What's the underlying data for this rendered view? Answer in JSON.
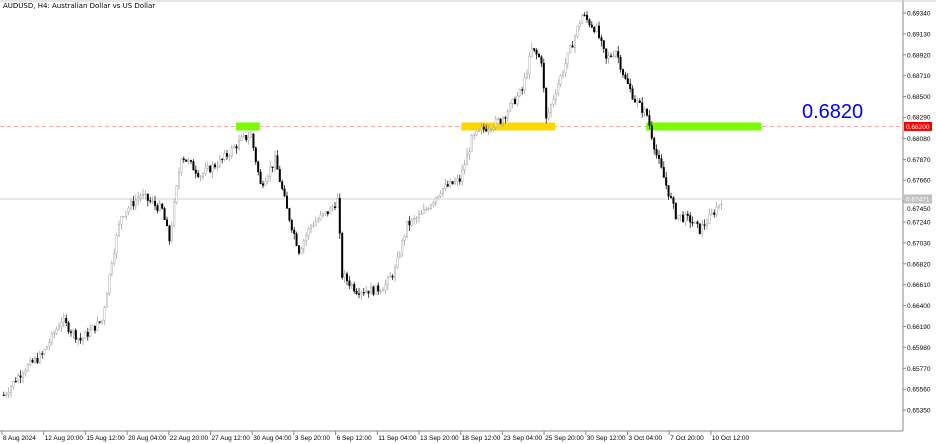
{
  "header": {
    "title": "AUDUSD, H4:  Australian Dollar vs US Dollar"
  },
  "annotation": {
    "level_text": "0.6820",
    "color": "#0000ff"
  },
  "chart_data": {
    "type": "candlestick",
    "symbol": "AUDUSD",
    "timeframe": "H4",
    "ylim": [
      0.6525,
      0.6945
    ],
    "y_ticks": [
      "0.69340",
      "0.69130",
      "0.68920",
      "0.68710",
      "0.68500",
      "0.68290",
      "0.68080",
      "0.67870",
      "0.67660",
      "0.67450",
      "0.67240",
      "0.67030",
      "0.66820",
      "0.66610",
      "0.66400",
      "0.66190",
      "0.65980",
      "0.65770",
      "0.65560",
      "0.65350"
    ],
    "x_ticks": [
      "8 Aug 2024",
      "12 Aug 20:00",
      "15 Aug 12:00",
      "20 Aug 04:00",
      "22 Aug 20:00",
      "27 Aug 12:00",
      "30 Aug 04:00",
      "3 Sep 20:00",
      "6 Sep 12:00",
      "11 Sep 04:00",
      "13 Sep 20:00",
      "18 Sep 12:00",
      "23 Sep 04:00",
      "25 Sep 20:00",
      "30 Sep 12:00",
      "3 Oct 04:00",
      "7 Oct 20:00",
      "10 Oct 12:00"
    ],
    "horizontal_line": {
      "price": 0.682,
      "label": "0.68200",
      "color": "#ff0000"
    },
    "current_price": {
      "price": 0.67471,
      "label": "0.67471",
      "color": "#c0c0c0"
    },
    "zones": [
      {
        "bars": [
          97,
          107
        ],
        "price": [
          0.6816,
          0.6824
        ],
        "color": "#7cfc00"
      },
      {
        "bars": [
          191,
          230
        ],
        "price": [
          0.6816,
          0.6824
        ],
        "color": "#ffd700"
      },
      {
        "bars": [
          268,
          316
        ],
        "price": [
          0.6816,
          0.6824
        ],
        "color": "#7cfc00"
      }
    ],
    "close_path": [
      [
        0,
        0.65501
      ],
      [
        8,
        0.65752
      ],
      [
        16,
        0.65903
      ],
      [
        24,
        0.66255
      ],
      [
        32,
        0.66054
      ],
      [
        41,
        0.66255
      ],
      [
        45,
        0.66858
      ],
      [
        49,
        0.6731
      ],
      [
        57,
        0.67511
      ],
      [
        66,
        0.6736
      ],
      [
        69,
        0.67059
      ],
      [
        74,
        0.67913
      ],
      [
        82,
        0.67712
      ],
      [
        91,
        0.67863
      ],
      [
        99,
        0.68064
      ],
      [
        103,
        0.68114
      ],
      [
        107,
        0.67611
      ],
      [
        113,
        0.67863
      ],
      [
        118,
        0.6736
      ],
      [
        123,
        0.66958
      ],
      [
        128,
        0.67209
      ],
      [
        136,
        0.6736
      ],
      [
        139,
        0.67461
      ],
      [
        141,
        0.66707
      ],
      [
        147,
        0.66556
      ],
      [
        155,
        0.66556
      ],
      [
        159,
        0.66606
      ],
      [
        163,
        0.66757
      ],
      [
        168,
        0.67209
      ],
      [
        174,
        0.6731
      ],
      [
        182,
        0.67561
      ],
      [
        190,
        0.67662
      ],
      [
        195,
        0.68064
      ],
      [
        199,
        0.68164
      ],
      [
        207,
        0.68265
      ],
      [
        216,
        0.68566
      ],
      [
        220,
        0.68968
      ],
      [
        224,
        0.68868
      ],
      [
        226,
        0.68265
      ],
      [
        230,
        0.68566
      ],
      [
        236,
        0.68968
      ],
      [
        241,
        0.6932
      ],
      [
        247,
        0.69169
      ],
      [
        251,
        0.68868
      ],
      [
        255,
        0.68968
      ],
      [
        259,
        0.68667
      ],
      [
        263,
        0.68466
      ],
      [
        268,
        0.68315
      ],
      [
        272,
        0.67913
      ],
      [
        276,
        0.67611
      ],
      [
        280,
        0.6731
      ],
      [
        286,
        0.6726
      ],
      [
        290,
        0.67159
      ],
      [
        295,
        0.6731
      ],
      [
        299,
        0.67461
      ]
    ]
  }
}
